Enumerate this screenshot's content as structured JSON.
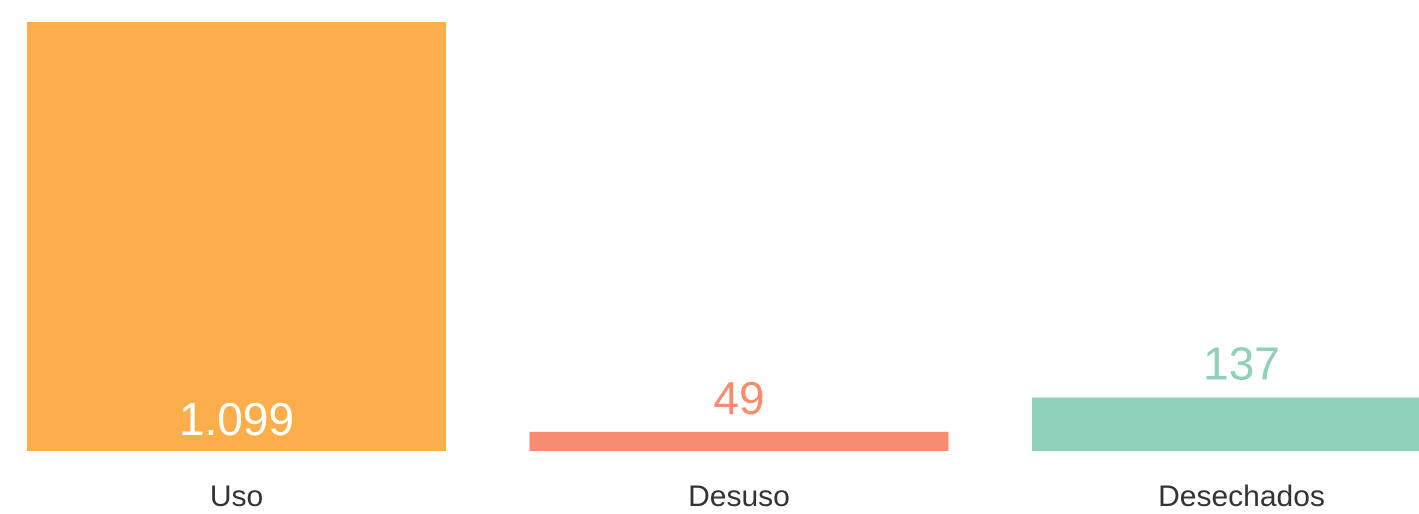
{
  "chart_data": {
    "type": "bar",
    "categories": [
      "Uso",
      "Desuso",
      "Desechados"
    ],
    "values": [
      1099,
      49,
      137
    ],
    "value_labels": [
      "1.099",
      "49",
      "137"
    ],
    "colors": [
      "#fcae4a",
      "#f78c6f",
      "#8fd0ba"
    ]
  }
}
